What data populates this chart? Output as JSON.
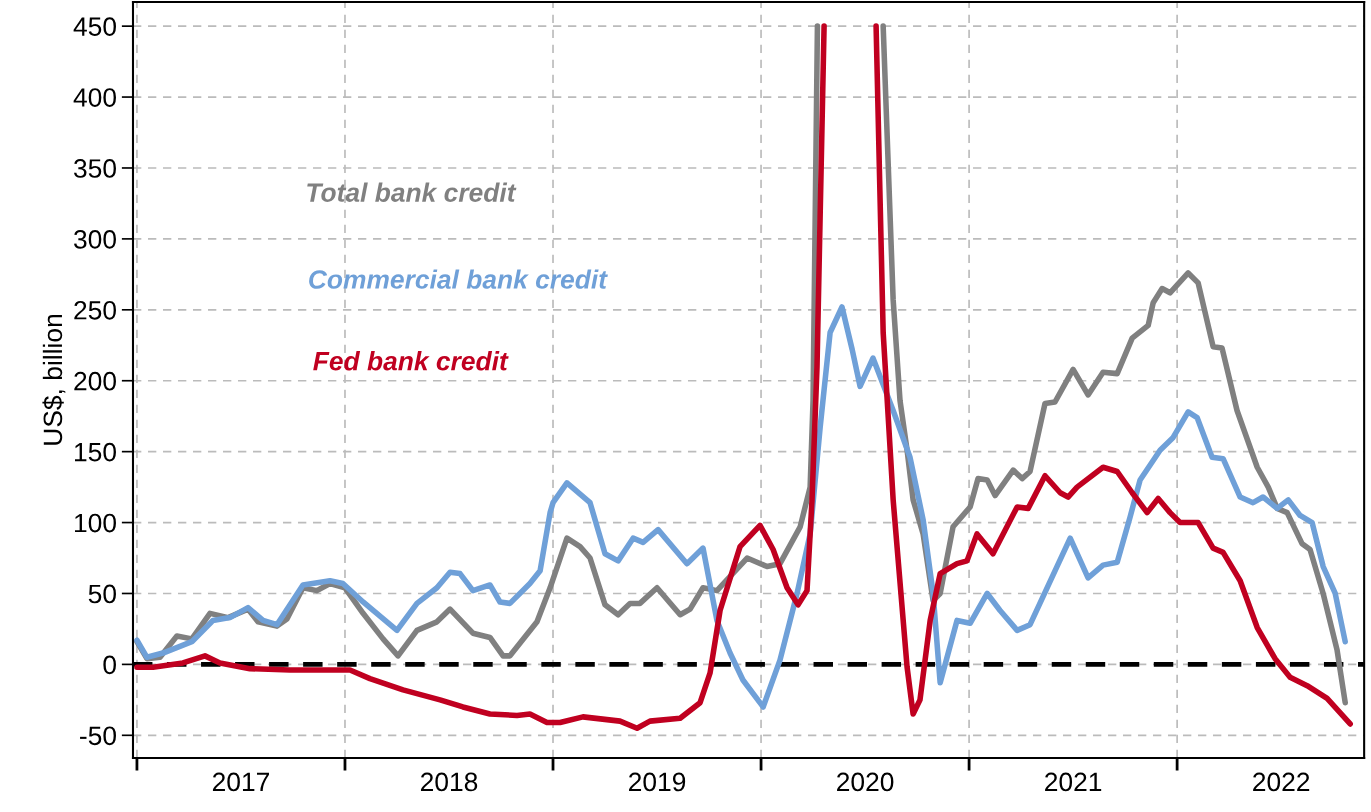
{
  "chart_data": {
    "type": "line",
    "ylabel": "US$, billion",
    "xlim": [
      2016.981,
      2022.899
    ],
    "ylim": [
      -66,
      467
    ],
    "xticks": [
      {
        "value": 2017,
        "label": null
      },
      {
        "value": 2017.5,
        "label": "2017"
      },
      {
        "value": 2018,
        "label": null
      },
      {
        "value": 2018.5,
        "label": "2018"
      },
      {
        "value": 2019,
        "label": null
      },
      {
        "value": 2019.5,
        "label": "2019"
      },
      {
        "value": 2020,
        "label": null
      },
      {
        "value": 2020.5,
        "label": "2020"
      },
      {
        "value": 2021,
        "label": null
      },
      {
        "value": 2021.5,
        "label": "2021"
      },
      {
        "value": 2022,
        "label": null
      },
      {
        "value": 2022.5,
        "label": "2022"
      }
    ],
    "yticks": [
      -50,
      0,
      50,
      100,
      150,
      200,
      250,
      300,
      350,
      400,
      450
    ],
    "grid": true,
    "legend": false,
    "line_style": "solid",
    "marker": "none",
    "ref_lines": [
      {
        "axis": "y",
        "value": 0,
        "label": null,
        "color": "#000000",
        "line_style": "dashed"
      }
    ],
    "series": [
      {
        "name": "Total bank credit",
        "color": "#808080",
        "x": [
          2017.0,
          2017.048,
          2017.111,
          2017.192,
          2017.264,
          2017.351,
          2017.438,
          2017.534,
          2017.582,
          2017.673,
          2017.721,
          2017.798,
          2017.865,
          2017.928,
          2018.0,
          2018.087,
          2018.183,
          2018.255,
          2018.346,
          2018.442,
          2018.505,
          2018.615,
          2018.697,
          2018.76,
          2018.793,
          2018.923,
          2018.986,
          2019.067,
          2019.13,
          2019.178,
          2019.25,
          2019.313,
          2019.37,
          2019.418,
          2019.5,
          2019.611,
          2019.659,
          2019.721,
          2019.788,
          2019.933,
          2020.029,
          2020.091,
          2020.188,
          2020.236,
          2020.25,
          2020.271,
          2020.43,
          2020.587,
          2020.635,
          2020.668,
          2020.702,
          2020.731,
          2020.779,
          2020.827,
          2020.861,
          2020.923,
          2021.005,
          2021.043,
          2021.087,
          2021.125,
          2021.212,
          2021.255,
          2021.293,
          2021.365,
          2021.413,
          2021.5,
          2021.572,
          2021.644,
          2021.712,
          2021.784,
          2021.861,
          2021.885,
          2021.928,
          2021.966,
          2022.053,
          2022.101,
          2022.173,
          2022.216,
          2022.288,
          2022.385,
          2022.438,
          2022.481,
          2022.529,
          2022.601,
          2022.639,
          2022.702,
          2022.769,
          2022.808
        ],
        "values": [
          16,
          4,
          5,
          20,
          18,
          36,
          33,
          39,
          30,
          27,
          32,
          54,
          52,
          57,
          54,
          36,
          18,
          6,
          24,
          30,
          39,
          22,
          19,
          6,
          6,
          30,
          54,
          89,
          83,
          75,
          42,
          35,
          43,
          43,
          54,
          35,
          39,
          54,
          52,
          75,
          69,
          71,
          97,
          125,
          186,
          450,
          null,
          450,
          257,
          186,
          151,
          116,
          92,
          45,
          50,
          97,
          111,
          131,
          130,
          119,
          137,
          131,
          136,
          184,
          185,
          208,
          190,
          206,
          205,
          230,
          239,
          255,
          265,
          262,
          276,
          269,
          224,
          223,
          179,
          139,
          125,
          110,
          107,
          85,
          81,
          50,
          10,
          -27
        ]
      },
      {
        "name": "Commercial bank credit",
        "color": "#6fa0d8",
        "x": [
          2017.0,
          2017.048,
          2017.125,
          2017.264,
          2017.365,
          2017.447,
          2017.534,
          2017.606,
          2017.673,
          2017.798,
          2017.928,
          2017.99,
          2018.087,
          2018.25,
          2018.346,
          2018.442,
          2018.505,
          2018.553,
          2018.615,
          2018.697,
          2018.745,
          2018.793,
          2018.889,
          2018.938,
          2018.986,
          2019.0,
          2019.067,
          2019.178,
          2019.25,
          2019.313,
          2019.385,
          2019.433,
          2019.505,
          2019.644,
          2019.721,
          2019.788,
          2019.851,
          2019.913,
          2020.01,
          2020.091,
          2020.173,
          2020.236,
          2020.284,
          2020.332,
          2020.389,
          2020.438,
          2020.476,
          2020.538,
          2020.635,
          2020.716,
          2020.779,
          2020.827,
          2020.861,
          2020.942,
          2021.005,
          2021.087,
          2021.149,
          2021.231,
          2021.293,
          2021.375,
          2021.486,
          2021.572,
          2021.644,
          2021.712,
          2021.774,
          2021.822,
          2021.918,
          2021.981,
          2022.053,
          2022.096,
          2022.168,
          2022.221,
          2022.303,
          2022.365,
          2022.413,
          2022.481,
          2022.534,
          2022.591,
          2022.649,
          2022.702,
          2022.76,
          2022.808
        ],
        "values": [
          17,
          5,
          8,
          16,
          31,
          33,
          40,
          31,
          28,
          56,
          59,
          57,
          44,
          24,
          43,
          54,
          65,
          64,
          52,
          56,
          44,
          43,
          57,
          66,
          107,
          114,
          128,
          114,
          78,
          73,
          89,
          86,
          95,
          71,
          82,
          31,
          8,
          -11,
          -30,
          3,
          50,
          92,
          167,
          234,
          252,
          222,
          196,
          216,
          179,
          146,
          102,
          50,
          -13,
          31,
          29,
          50,
          38,
          24,
          28,
          54,
          89,
          61,
          70,
          72,
          104,
          130,
          151,
          160,
          178,
          174,
          146,
          145,
          118,
          114,
          118,
          110,
          116,
          105,
          100,
          69,
          50,
          16
        ]
      },
      {
        "name": "Fed bank credit",
        "color": "#c00020",
        "x": [
          2017.0,
          2017.077,
          2017.221,
          2017.327,
          2017.399,
          2017.543,
          2017.736,
          2017.928,
          2018.024,
          2018.12,
          2018.279,
          2018.457,
          2018.567,
          2018.697,
          2018.827,
          2018.889,
          2018.971,
          2019.034,
          2019.144,
          2019.322,
          2019.404,
          2019.466,
          2019.611,
          2019.707,
          2019.755,
          2019.803,
          2019.899,
          2019.995,
          2020.058,
          2020.125,
          2020.178,
          2020.221,
          2020.245,
          2020.269,
          2020.303,
          2020.43,
          2020.553,
          2020.587,
          2020.635,
          2020.702,
          2020.731,
          2020.764,
          2020.813,
          2020.861,
          2020.942,
          2020.99,
          2021.038,
          2021.115,
          2021.231,
          2021.284,
          2021.365,
          2021.438,
          2021.476,
          2021.519,
          2021.644,
          2021.712,
          2021.784,
          2021.856,
          2021.909,
          2021.966,
          2022.014,
          2022.101,
          2022.173,
          2022.221,
          2022.303,
          2022.385,
          2022.471,
          2022.543,
          2022.625,
          2022.721,
          2022.832
        ],
        "values": [
          -2,
          -2,
          1,
          6,
          1,
          -3,
          -4,
          -4,
          -4,
          -10,
          -18,
          -25,
          -30,
          -35,
          -36,
          -35,
          -41,
          -41,
          -37,
          -40,
          -45,
          -40,
          -38,
          -27,
          -6,
          38,
          83,
          98,
          81,
          54,
          42,
          52,
          116,
          210,
          450,
          null,
          450,
          234,
          116,
          -2,
          -35,
          -25,
          31,
          64,
          71,
          73,
          92,
          78,
          111,
          110,
          133,
          121,
          118,
          125,
          139,
          136,
          121,
          107,
          117,
          107,
          100,
          100,
          82,
          79,
          59,
          26,
          4,
          -9,
          -15,
          -24,
          -42
        ]
      }
    ]
  }
}
